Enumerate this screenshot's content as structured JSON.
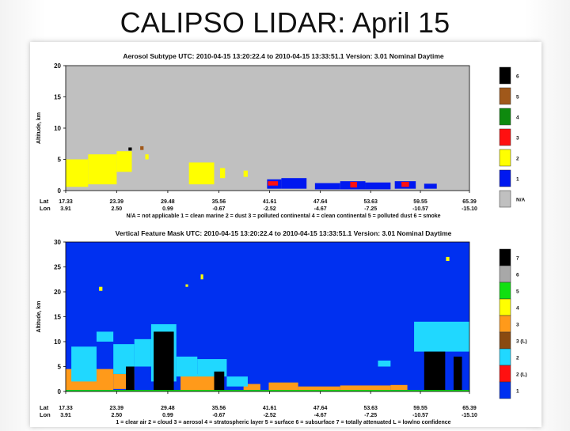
{
  "slide_title": "CALIPSO LIDAR: April 15",
  "chart_data": [
    {
      "type": "heatmap",
      "title": "Aerosol Subtype  UTC: 2010-04-15  13:20:22.4  to  2010-04-15  13:33:51.1  Version: 3.01  Nominal Daytime",
      "ylabel": "Altitude, km",
      "ylim": [
        0,
        20
      ],
      "yticks": [
        "0",
        "5",
        "10",
        "15",
        "20"
      ],
      "row_labels": [
        "Lat",
        "Lon"
      ],
      "lat": [
        "17.33",
        "23.39",
        "29.48",
        "35.56",
        "41.61",
        "47.64",
        "53.63",
        "59.55",
        "65.39"
      ],
      "lon": [
        "3.91",
        "2.50",
        "0.99",
        "-0.67",
        "-2.52",
        "-4.67",
        "-7.25",
        "-10.57",
        "-15.10"
      ],
      "legend_caption": "N/A = not applicable   1 = clean marine   2 = dust   3 = polluted continental   4 = clean continental   5 = polluted dust   6 = smoke",
      "colorbar": [
        {
          "code": "6",
          "color": "#000000"
        },
        {
          "code": "5",
          "color": "#a0581a"
        },
        {
          "code": "4",
          "color": "#0e8a0e"
        },
        {
          "code": "3",
          "color": "#ff1010"
        },
        {
          "code": "2",
          "color": "#ffff00"
        },
        {
          "code": "1",
          "color": "#0018f0"
        },
        {
          "code": "N/A",
          "color": "#c0c0c0"
        }
      ],
      "layers": [
        {
          "class": "2",
          "lat_from": 17.33,
          "lat_to": 20.0,
          "alt_from": 0.6,
          "alt_to": 5.0
        },
        {
          "class": "2",
          "lat_from": 20.0,
          "lat_to": 23.4,
          "alt_from": 1.0,
          "alt_to": 5.8
        },
        {
          "class": "2",
          "lat_from": 23.4,
          "lat_to": 25.2,
          "alt_from": 3.0,
          "alt_to": 6.3
        },
        {
          "class": "2",
          "lat_from": 26.8,
          "lat_to": 27.2,
          "alt_from": 5.0,
          "alt_to": 5.8
        },
        {
          "class": "2",
          "lat_from": 32.0,
          "lat_to": 35.0,
          "alt_from": 1.0,
          "alt_to": 4.5
        },
        {
          "class": "2",
          "lat_from": 35.7,
          "lat_to": 36.3,
          "alt_from": 2.0,
          "alt_to": 3.6
        },
        {
          "class": "2",
          "lat_from": 38.5,
          "lat_to": 39.0,
          "alt_from": 2.2,
          "alt_to": 3.2
        },
        {
          "class": "1",
          "lat_from": 41.3,
          "lat_to": 43.0,
          "alt_from": 0.3,
          "alt_to": 1.8
        },
        {
          "class": "3",
          "lat_from": 41.4,
          "lat_to": 42.6,
          "alt_from": 0.8,
          "alt_to": 1.5
        },
        {
          "class": "1",
          "lat_from": 43.0,
          "lat_to": 46.0,
          "alt_from": 0.3,
          "alt_to": 2.0
        },
        {
          "class": "1",
          "lat_from": 47.0,
          "lat_to": 50.0,
          "alt_from": 0.2,
          "alt_to": 1.2
        },
        {
          "class": "1",
          "lat_from": 50.0,
          "lat_to": 53.0,
          "alt_from": 0.2,
          "alt_to": 1.5
        },
        {
          "class": "3",
          "lat_from": 51.2,
          "lat_to": 52.0,
          "alt_from": 0.5,
          "alt_to": 1.4
        },
        {
          "class": "1",
          "lat_from": 53.0,
          "lat_to": 56.0,
          "alt_from": 0.2,
          "alt_to": 1.3
        },
        {
          "class": "1",
          "lat_from": 56.5,
          "lat_to": 59.0,
          "alt_from": 0.3,
          "alt_to": 1.5
        },
        {
          "class": "3",
          "lat_from": 57.3,
          "lat_to": 58.2,
          "alt_from": 0.6,
          "alt_to": 1.4
        },
        {
          "class": "1",
          "lat_from": 60.0,
          "lat_to": 61.5,
          "alt_from": 0.3,
          "alt_to": 1.1
        },
        {
          "class": "6",
          "lat_from": 24.8,
          "lat_to": 25.2,
          "alt_from": 6.4,
          "alt_to": 6.9
        },
        {
          "class": "5",
          "lat_from": 26.2,
          "lat_to": 26.6,
          "alt_from": 6.5,
          "alt_to": 7.1
        }
      ]
    },
    {
      "type": "heatmap",
      "title": "Vertical Feature Mask  UTC: 2010-04-15  13:20:22.4  to  2010-04-15  13:33:51.1  Version: 3.01  Nominal Daytime",
      "ylabel": "Altitude, km",
      "ylim": [
        0,
        30
      ],
      "yticks": [
        "0",
        "5",
        "10",
        "15",
        "20",
        "25",
        "30"
      ],
      "row_labels": [
        "Lat",
        "Lon"
      ],
      "lat": [
        "17.33",
        "23.39",
        "29.48",
        "35.56",
        "41.61",
        "47.64",
        "53.63",
        "59.55",
        "65.39"
      ],
      "lon": [
        "3.91",
        "2.50",
        "0.99",
        "-0.67",
        "-2.52",
        "-4.67",
        "-7.25",
        "-10.57",
        "-15.10"
      ],
      "legend_caption": "1 = clear air   2 = cloud   3 = aerosol   4 = stratospheric layer   5 = surface   6 = subsurface   7 = totally attenuated   L = low/no confidence",
      "colorbar": [
        {
          "code": "7",
          "color": "#000000"
        },
        {
          "code": "6",
          "color": "#a8a8a8"
        },
        {
          "code": "5",
          "color": "#10e010"
        },
        {
          "code": "4",
          "color": "#ffff00"
        },
        {
          "code": "3",
          "color": "#ff9a1a"
        },
        {
          "code": "3 (L)",
          "color": "#8a4a10"
        },
        {
          "code": "2",
          "color": "#20d8ff"
        },
        {
          "code": "2 (L)",
          "color": "#ff1010"
        },
        {
          "code": "1",
          "color": "#0030f0"
        }
      ],
      "layers": [
        {
          "class": "3",
          "lat_from": 17.33,
          "lat_to": 23.0,
          "alt_from": 0.3,
          "alt_to": 4.5
        },
        {
          "class": "3",
          "lat_from": 23.0,
          "lat_to": 25.5,
          "alt_from": 0.5,
          "alt_to": 3.5
        },
        {
          "class": "3",
          "lat_from": 31.0,
          "lat_to": 35.0,
          "alt_from": 0.2,
          "alt_to": 3.5
        },
        {
          "class": "3",
          "lat_from": 38.5,
          "lat_to": 40.5,
          "alt_from": 0.3,
          "alt_to": 1.5
        },
        {
          "class": "3",
          "lat_from": 41.5,
          "lat_to": 45.0,
          "alt_from": 0.2,
          "alt_to": 1.8
        },
        {
          "class": "3",
          "lat_from": 45.0,
          "lat_to": 50.0,
          "alt_from": 0.2,
          "alt_to": 1.0
        },
        {
          "class": "3",
          "lat_from": 50.0,
          "lat_to": 56.0,
          "alt_from": 0.2,
          "alt_to": 1.2
        },
        {
          "class": "3",
          "lat_from": 56.0,
          "lat_to": 58.0,
          "alt_from": 0.3,
          "alt_to": 1.3
        },
        {
          "class": "2",
          "lat_from": 18.0,
          "lat_to": 21.0,
          "alt_from": 2.0,
          "alt_to": 9.0
        },
        {
          "class": "2",
          "lat_from": 21.0,
          "lat_to": 23.0,
          "alt_from": 10.0,
          "alt_to": 12.0
        },
        {
          "class": "2",
          "lat_from": 23.0,
          "lat_to": 25.5,
          "alt_from": 3.5,
          "alt_to": 9.5
        },
        {
          "class": "2",
          "lat_from": 25.5,
          "lat_to": 27.5,
          "alt_from": 5.0,
          "alt_to": 10.5
        },
        {
          "class": "2",
          "lat_from": 27.5,
          "lat_to": 30.5,
          "alt_from": 2.0,
          "alt_to": 13.5
        },
        {
          "class": "2",
          "lat_from": 30.5,
          "lat_to": 33.0,
          "alt_from": 3.0,
          "alt_to": 7.0
        },
        {
          "class": "2",
          "lat_from": 33.0,
          "lat_to": 36.5,
          "alt_from": 3.0,
          "alt_to": 6.5
        },
        {
          "class": "2",
          "lat_from": 36.5,
          "lat_to": 39.0,
          "alt_from": 1.0,
          "alt_to": 3.0
        },
        {
          "class": "2",
          "lat_from": 54.5,
          "lat_to": 56.0,
          "alt_from": 5.0,
          "alt_to": 6.2
        },
        {
          "class": "2",
          "lat_from": 58.8,
          "lat_to": 65.39,
          "alt_from": 8.0,
          "alt_to": 14.0
        },
        {
          "class": "7",
          "lat_from": 27.8,
          "lat_to": 30.2,
          "alt_from": 0.0,
          "alt_to": 12.0
        },
        {
          "class": "7",
          "lat_from": 24.5,
          "lat_to": 25.5,
          "alt_from": 0.0,
          "alt_to": 5.0
        },
        {
          "class": "7",
          "lat_from": 35.0,
          "lat_to": 36.2,
          "alt_from": 0.0,
          "alt_to": 4.0
        },
        {
          "class": "7",
          "lat_from": 60.0,
          "lat_to": 62.5,
          "alt_from": 0.0,
          "alt_to": 8.0
        },
        {
          "class": "7",
          "lat_from": 63.5,
          "lat_to": 64.5,
          "alt_from": 0.0,
          "alt_to": 7.0
        },
        {
          "class": "5",
          "lat_from": 17.33,
          "lat_to": 65.39,
          "alt_from": 0.0,
          "alt_to": 0.3
        },
        {
          "class": "4",
          "lat_from": 21.3,
          "lat_to": 21.7,
          "alt_from": 20.2,
          "alt_to": 21.0
        },
        {
          "class": "4",
          "lat_from": 31.6,
          "lat_to": 31.9,
          "alt_from": 21.0,
          "alt_to": 21.5
        },
        {
          "class": "4",
          "lat_from": 33.4,
          "lat_to": 33.7,
          "alt_from": 22.5,
          "alt_to": 23.5
        },
        {
          "class": "4",
          "lat_from": 62.6,
          "lat_to": 63.0,
          "alt_from": 26.2,
          "alt_to": 27.0
        }
      ]
    }
  ]
}
